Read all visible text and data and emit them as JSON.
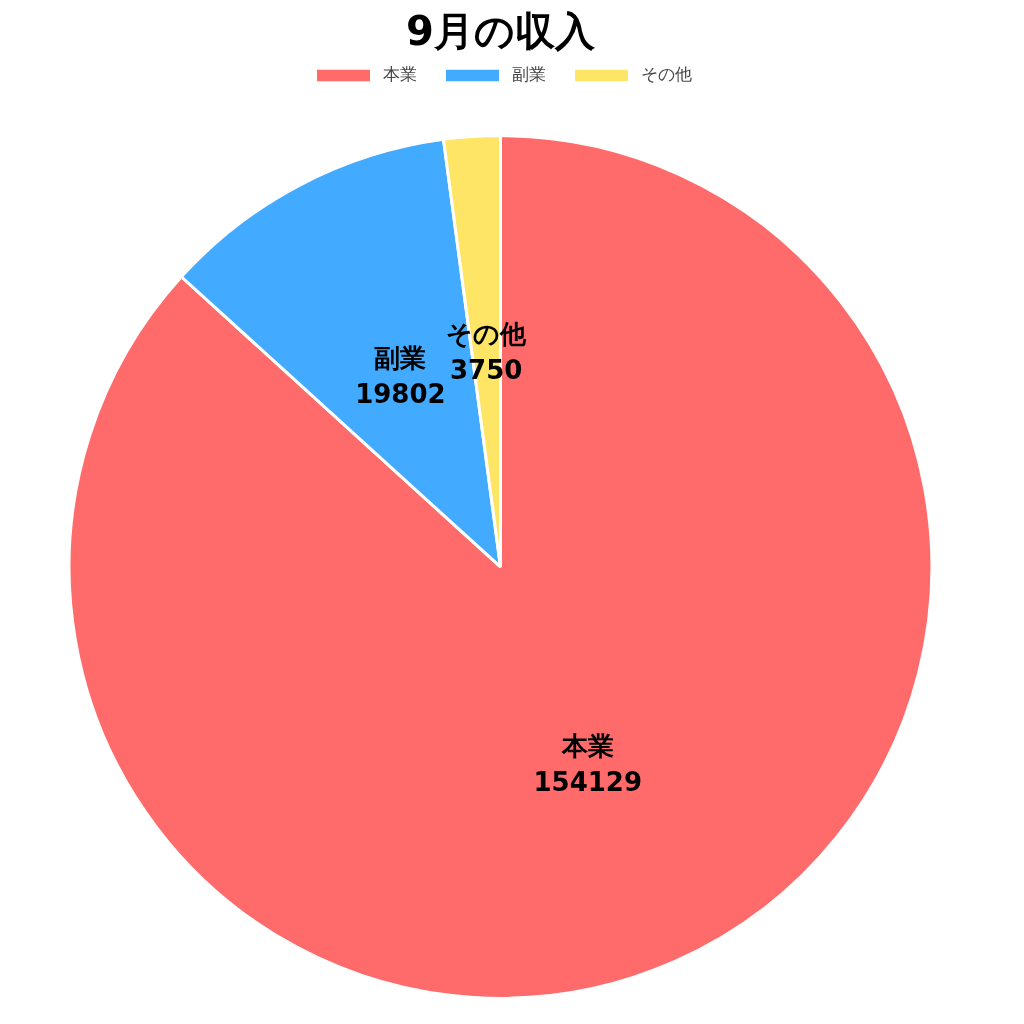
{
  "chart_data": {
    "type": "pie",
    "title": "9月の収入",
    "categories": [
      "本業",
      "副業",
      "その他"
    ],
    "values": [
      154129,
      19802,
      3750
    ],
    "colors": [
      "#ff6b6b",
      "#42aaff",
      "#ffe566"
    ],
    "data_labels": true,
    "legend": "top"
  }
}
